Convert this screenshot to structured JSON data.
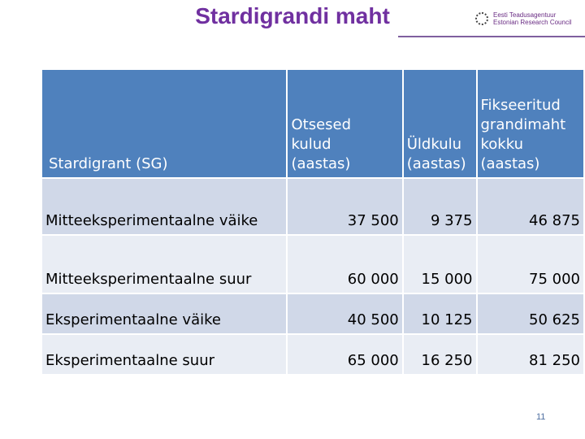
{
  "header": {
    "title": "Stardigrandi maht",
    "logo": [
      "Eesti Teadusagentuur",
      "Estonian Research Council"
    ]
  },
  "table": {
    "columns": [
      [
        "Stardigrant (SG)"
      ],
      [
        "Otsesed",
        "kulud",
        "(aastas)"
      ],
      [
        "Üldkulu",
        "(aastas)"
      ],
      [
        "Fikseeritud",
        "grandimaht",
        "kokku",
        "(aastas)"
      ]
    ],
    "rows": [
      [
        "Mitteeksperimentaalne väike",
        "37 500",
        "9 375",
        "46 875"
      ],
      [
        "Mitteeksperimentaalne suur",
        "60 000",
        "15 000",
        "75 000"
      ],
      [
        "Eksperimentaalne väike",
        "40 500",
        "10 125",
        "50 625"
      ],
      [
        "Eksperimentaalne suur",
        "65 000",
        "16 250",
        "81 250"
      ]
    ]
  },
  "footer": {
    "page_number": "11"
  }
}
